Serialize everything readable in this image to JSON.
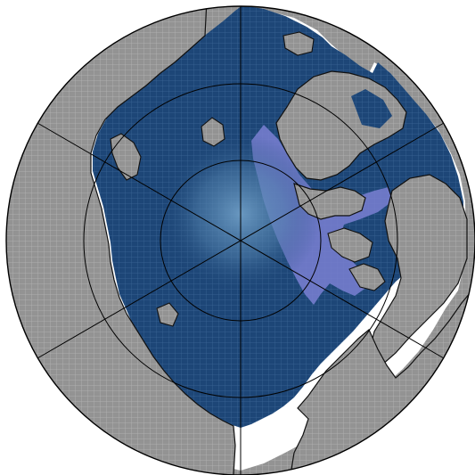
{
  "map": {
    "projection": "north-polar-stereographic",
    "colors": {
      "land": "#939393",
      "land_grid": "#b4b4b4",
      "ice": "#1d4677",
      "ice_grid": "#3d6797",
      "ice_margin": "#7a80d2",
      "open_water": "#ffffff",
      "pole_glow": "#6d9cc4",
      "coastline": "#111111",
      "graticule": "#000000"
    },
    "graticule": {
      "meridians_deg": [
        0,
        60,
        120,
        180,
        240,
        300
      ],
      "parallels_deg": [
        60,
        70,
        80
      ]
    },
    "layers": [
      "land",
      "sea-ice",
      "ice-edge",
      "coastline",
      "graticule"
    ]
  }
}
